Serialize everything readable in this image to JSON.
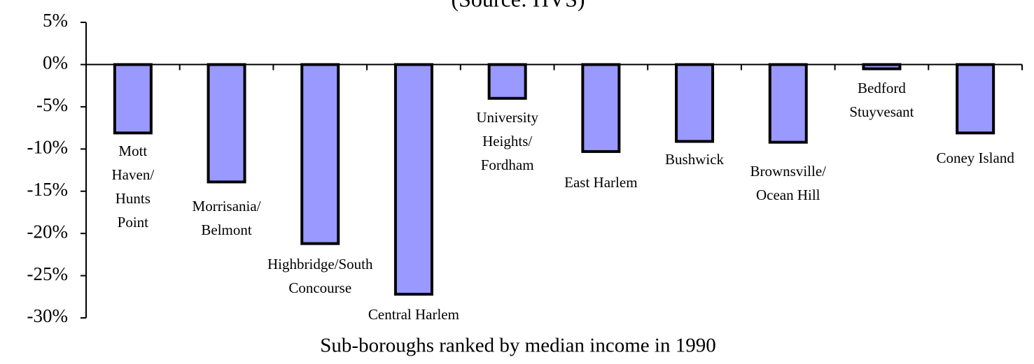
{
  "chart_data": {
    "type": "bar",
    "subtitle": "(Source: HVS)",
    "x_label": "Sub-boroughs ranked by median income in 1990",
    "categories": [
      [
        "Mott",
        "Haven/",
        "Hunts",
        "Point"
      ],
      [
        "Morrisania/",
        "Belmont"
      ],
      [
        "Highbridge/South",
        "Concourse"
      ],
      [
        "Central Harlem"
      ],
      [
        "University",
        "Heights/",
        "Fordham"
      ],
      [
        "East Harlem"
      ],
      [
        "Bushwick"
      ],
      [
        "Brownsville/",
        "Ocean Hill"
      ],
      [
        "Bedford",
        "Stuyvesant"
      ],
      [
        "Coney Island"
      ]
    ],
    "values": [
      -8.1,
      -13.9,
      -21.2,
      -27.2,
      -4.0,
      -10.3,
      -9.1,
      -9.2,
      -0.5,
      -8.1
    ],
    "color": "#9999ff",
    "ylim": [
      -30,
      5
    ],
    "yticks": [
      {
        "value": 5,
        "label": "5%"
      },
      {
        "value": 0,
        "label": "0%"
      },
      {
        "value": -5,
        "label": "-5%"
      },
      {
        "value": -10,
        "label": "-10%"
      },
      {
        "value": -15,
        "label": "-15%"
      },
      {
        "value": -20,
        "label": "-20%"
      },
      {
        "value": -25,
        "label": "-25%"
      },
      {
        "value": -30,
        "label": "-30%"
      }
    ]
  }
}
